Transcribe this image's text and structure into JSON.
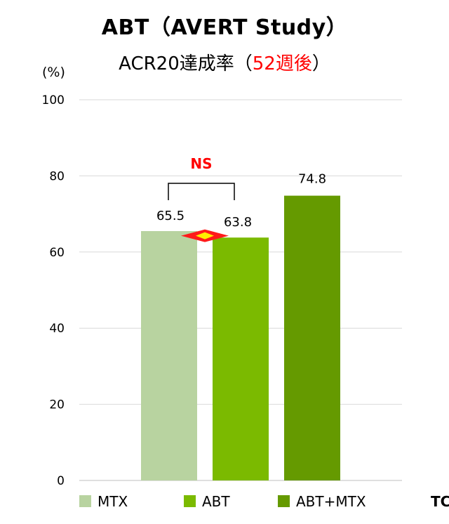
{
  "chart_data": {
    "type": "bar",
    "title": "ABT（AVERT Study）",
    "subtitle_prefix": "ACR20達成率（",
    "subtitle_highlight": "52週後",
    "subtitle_suffix": "）",
    "ylabel": "(%)",
    "ylim": [
      0,
      100
    ],
    "yticks": [
      "0",
      "20",
      "40",
      "60",
      "80",
      "100"
    ],
    "categories": [
      "MTX",
      "ABT",
      "ABT+MTX"
    ],
    "values": [
      65.5,
      63.8,
      74.8
    ],
    "value_labels": [
      "65.5",
      "63.8",
      "74.8"
    ],
    "colors": [
      "#b8d3a0",
      "#7bba00",
      "#659a00"
    ],
    "annotation": "NS",
    "annotation_color": "#ff0000",
    "corner_text": "TC"
  }
}
